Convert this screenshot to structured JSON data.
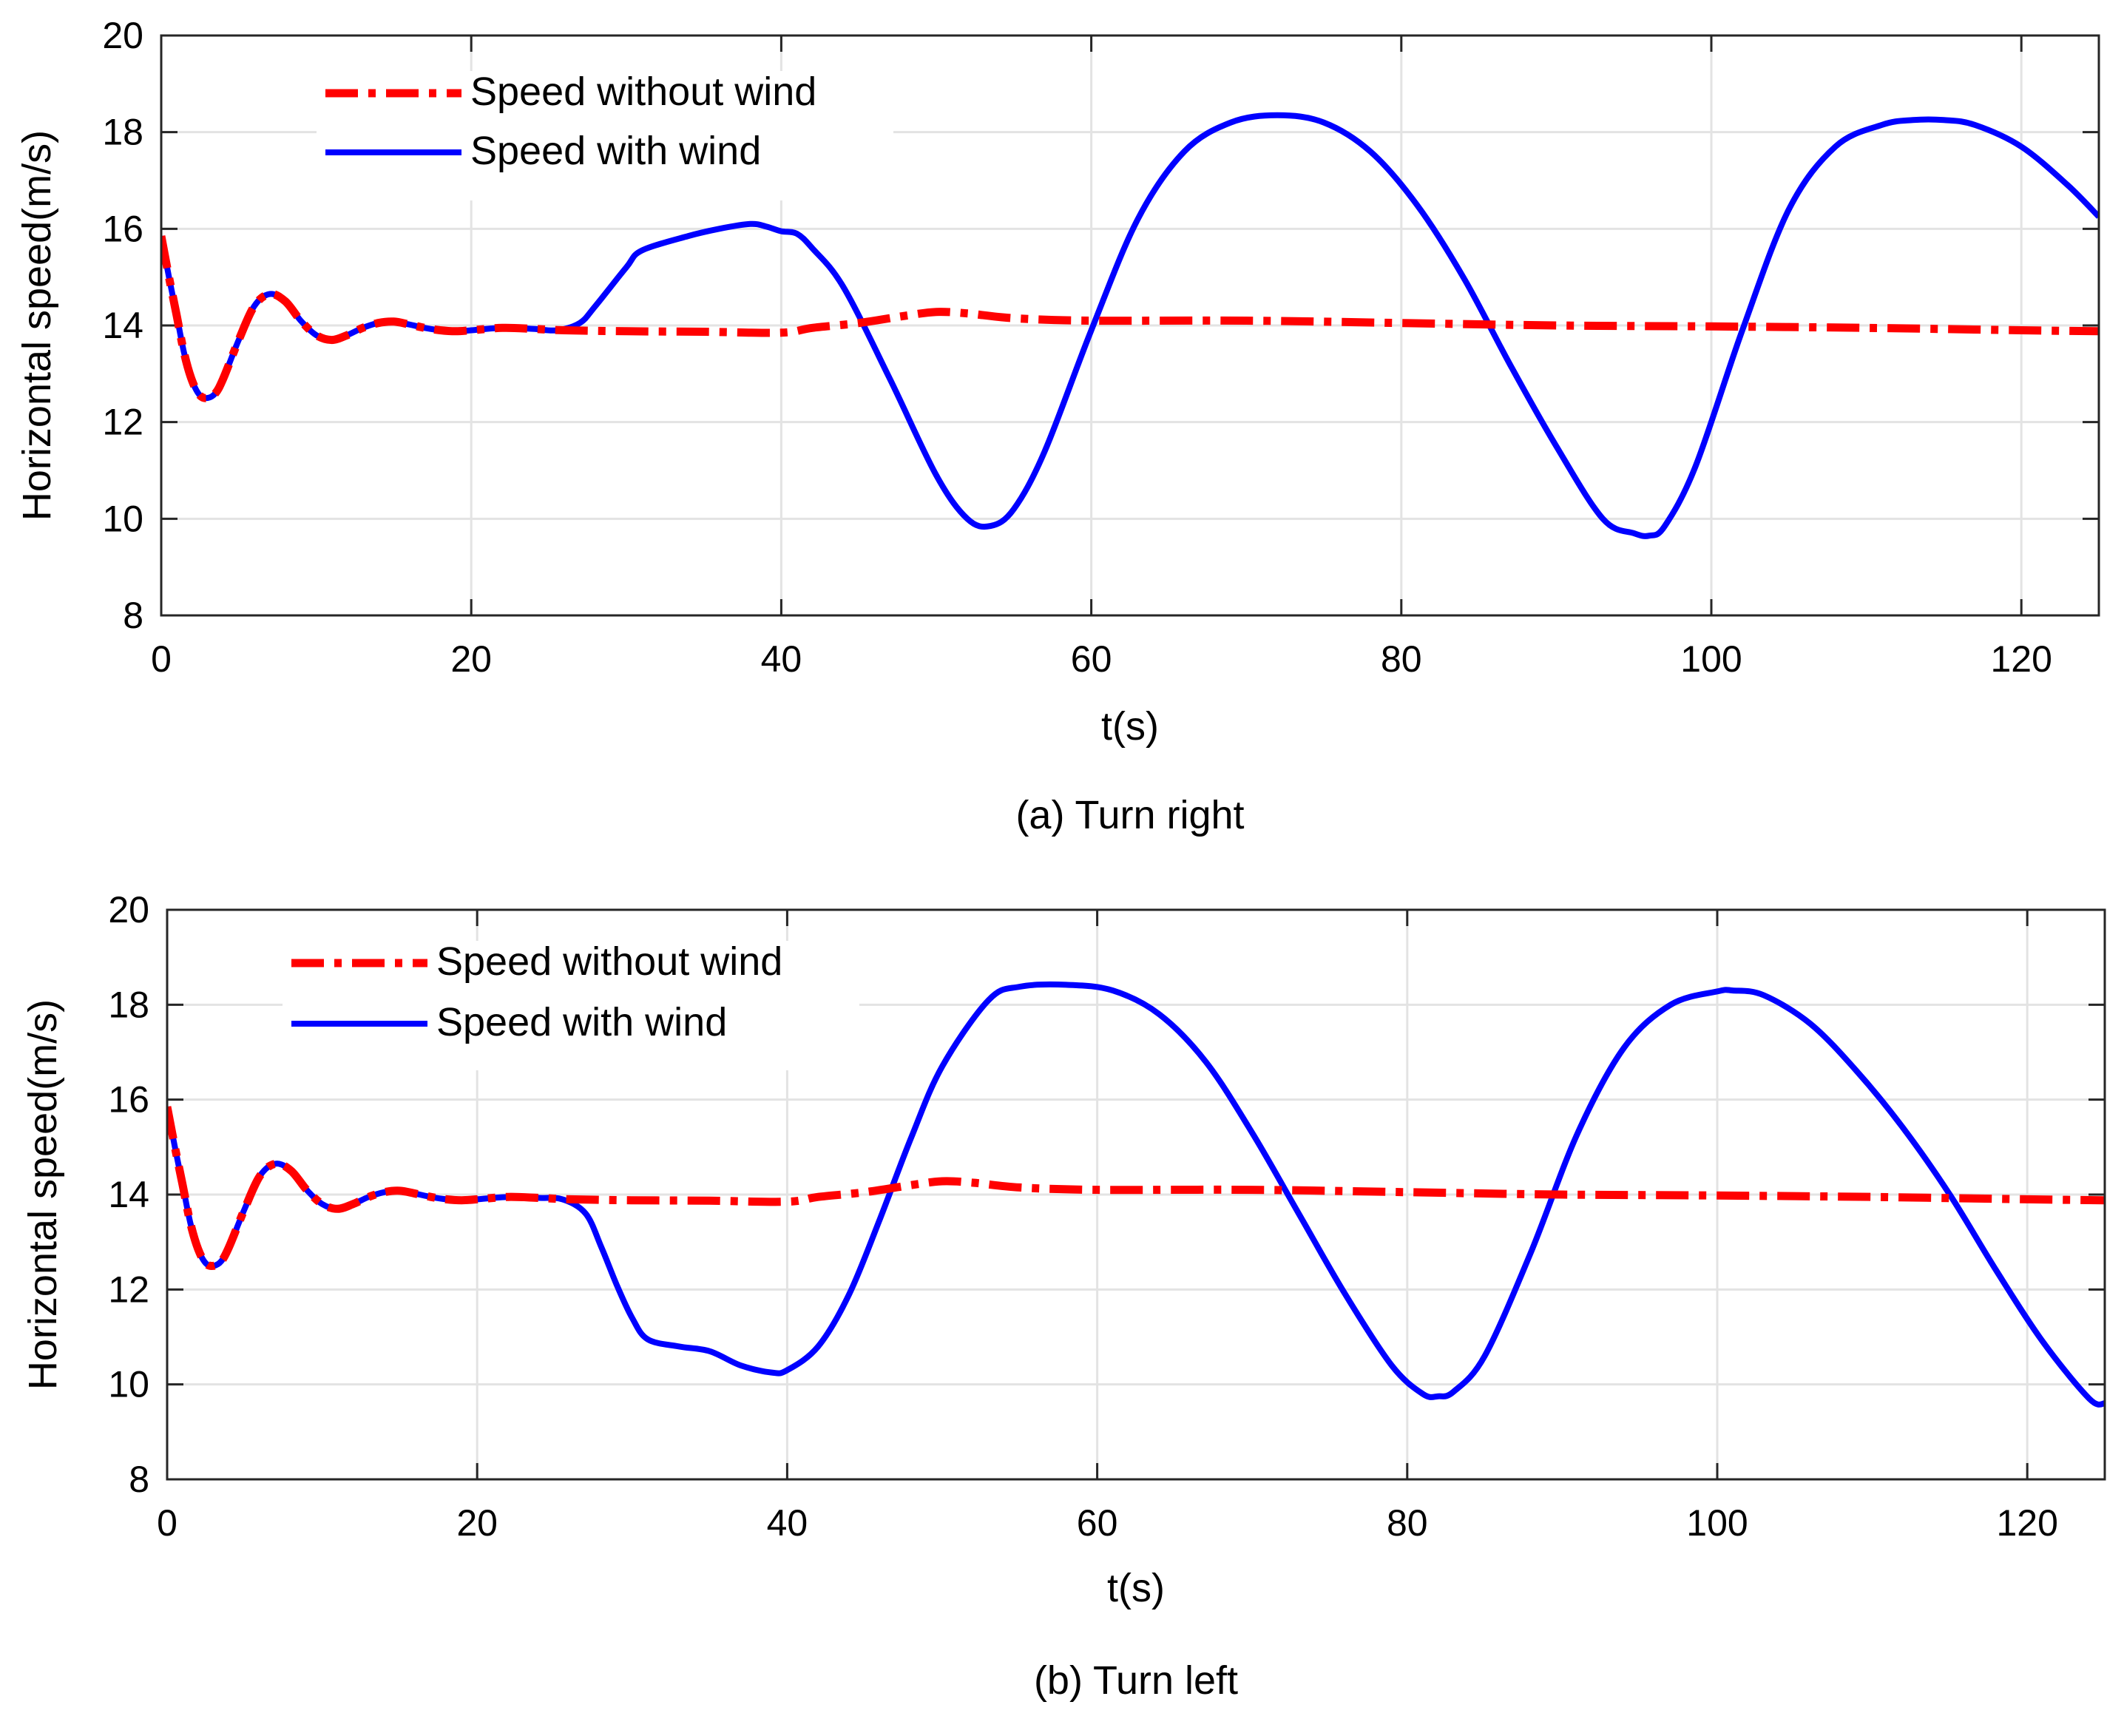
{
  "chart_data": [
    {
      "type": "line",
      "caption": "(a) Turn right",
      "xlabel": "t(s)",
      "ylabel": "Horizontal speed(m/s)",
      "xlim": [
        0,
        125
      ],
      "ylim": [
        8,
        20
      ],
      "xticks": [
        "0",
        "20",
        "40",
        "60",
        "80",
        "100",
        "120"
      ],
      "yticks": [
        "8",
        "10",
        "12",
        "14",
        "16",
        "18",
        "20"
      ],
      "grid": true,
      "legend_position": "top-left",
      "series": [
        {
          "name": "Speed without wind",
          "color": "#ff0000",
          "style": "dash-dot",
          "x": [
            0,
            0.5,
            1,
            1.5,
            2,
            2.5,
            3,
            3.5,
            4,
            5,
            6,
            7,
            8,
            9,
            10,
            11,
            12,
            13,
            14,
            15,
            16,
            17,
            18,
            19,
            20,
            22,
            24,
            26,
            30,
            35,
            40,
            42,
            45,
            48,
            50,
            52,
            55,
            60,
            70,
            80,
            90,
            100,
            110,
            120,
            125
          ],
          "y": [
            15.85,
            15.0,
            14.2,
            13.4,
            12.85,
            12.55,
            12.5,
            12.6,
            12.9,
            13.7,
            14.4,
            14.65,
            14.5,
            14.1,
            13.8,
            13.7,
            13.8,
            13.95,
            14.05,
            14.08,
            14.02,
            13.95,
            13.9,
            13.88,
            13.9,
            13.95,
            13.93,
            13.9,
            13.88,
            13.87,
            13.85,
            13.95,
            14.05,
            14.2,
            14.28,
            14.25,
            14.15,
            14.1,
            14.1,
            14.05,
            14.0,
            13.98,
            13.95,
            13.9,
            13.88
          ]
        },
        {
          "name": "Speed with wind",
          "color": "#0000ff",
          "style": "solid",
          "x": [
            0,
            0.5,
            1,
            1.5,
            2,
            2.5,
            3,
            3.5,
            4,
            5,
            6,
            7,
            8,
            9,
            10,
            11,
            12,
            13,
            14,
            15,
            16,
            17,
            18,
            19,
            20,
            22,
            24,
            25.5,
            27,
            28,
            30,
            31,
            34,
            36,
            38,
            39,
            40,
            41,
            42,
            44,
            47,
            50,
            52,
            53.5,
            55,
            57,
            60,
            63,
            66,
            69,
            72,
            75,
            78,
            81,
            84,
            87,
            90,
            93,
            95,
            96,
            97,
            99,
            102,
            105,
            108,
            111,
            113,
            115,
            117,
            120,
            123,
            125
          ],
          "y": [
            15.85,
            15.0,
            14.2,
            13.4,
            12.85,
            12.55,
            12.5,
            12.6,
            12.9,
            13.7,
            14.4,
            14.65,
            14.5,
            14.1,
            13.8,
            13.7,
            13.8,
            13.95,
            14.05,
            14.08,
            14.02,
            13.95,
            13.9,
            13.88,
            13.9,
            13.95,
            13.93,
            13.9,
            14.05,
            14.4,
            15.2,
            15.55,
            15.85,
            16.0,
            16.1,
            16.05,
            15.95,
            15.9,
            15.6,
            14.8,
            12.9,
            10.9,
            10.0,
            9.85,
            10.2,
            11.4,
            13.9,
            16.2,
            17.6,
            18.2,
            18.35,
            18.2,
            17.6,
            16.5,
            15.0,
            13.2,
            11.5,
            10.0,
            9.7,
            9.65,
            9.85,
            11.1,
            13.9,
            16.4,
            17.7,
            18.15,
            18.25,
            18.25,
            18.15,
            17.7,
            16.9,
            16.25
          ]
        }
      ]
    },
    {
      "type": "line",
      "caption": "(b) Turn left",
      "xlabel": "t(s)",
      "ylabel": "Horizontal speed(m/s)",
      "xlim": [
        0,
        125
      ],
      "ylim": [
        8,
        20
      ],
      "xticks": [
        "0",
        "20",
        "40",
        "60",
        "80",
        "100",
        "120"
      ],
      "yticks": [
        "8",
        "10",
        "12",
        "14",
        "16",
        "18",
        "20"
      ],
      "grid": true,
      "legend_position": "top-left",
      "series": [
        {
          "name": "Speed without wind",
          "color": "#ff0000",
          "style": "dash-dot",
          "x": [
            0,
            0.5,
            1,
            1.5,
            2,
            2.5,
            3,
            3.5,
            4,
            5,
            6,
            7,
            8,
            9,
            10,
            11,
            12,
            13,
            14,
            15,
            16,
            17,
            18,
            19,
            20,
            22,
            24,
            26,
            30,
            35,
            40,
            42,
            45,
            48,
            50,
            52,
            55,
            60,
            70,
            80,
            90,
            100,
            110,
            120,
            125
          ],
          "y": [
            15.85,
            15.0,
            14.2,
            13.4,
            12.85,
            12.55,
            12.5,
            12.6,
            12.9,
            13.7,
            14.4,
            14.65,
            14.5,
            14.1,
            13.8,
            13.7,
            13.8,
            13.95,
            14.05,
            14.08,
            14.02,
            13.95,
            13.9,
            13.88,
            13.9,
            13.95,
            13.93,
            13.9,
            13.88,
            13.87,
            13.85,
            13.95,
            14.05,
            14.2,
            14.28,
            14.25,
            14.15,
            14.1,
            14.1,
            14.05,
            14.0,
            13.98,
            13.95,
            13.9,
            13.88
          ]
        },
        {
          "name": "Speed with wind",
          "color": "#0000ff",
          "style": "solid",
          "x": [
            0,
            0.5,
            1,
            1.5,
            2,
            2.5,
            3,
            3.5,
            4,
            5,
            6,
            7,
            8,
            9,
            10,
            11,
            12,
            13,
            14,
            15,
            16,
            17,
            18,
            19,
            20,
            22,
            24,
            25.5,
            27,
            28,
            29,
            30,
            31,
            33,
            35,
            37,
            39,
            40,
            42,
            44,
            46,
            48,
            50,
            53,
            55,
            58,
            61,
            64,
            67,
            70,
            73,
            76,
            79,
            81,
            82,
            83,
            85,
            88,
            91,
            94,
            97,
            100,
            101,
            103,
            106,
            109,
            112,
            115,
            118,
            121,
            124,
            125
          ],
          "y": [
            15.85,
            15.0,
            14.2,
            13.4,
            12.85,
            12.55,
            12.5,
            12.6,
            12.9,
            13.7,
            14.4,
            14.65,
            14.5,
            14.1,
            13.8,
            13.7,
            13.8,
            13.95,
            14.05,
            14.08,
            14.02,
            13.95,
            13.9,
            13.88,
            13.9,
            13.95,
            13.93,
            13.9,
            13.6,
            12.9,
            12.1,
            11.4,
            10.95,
            10.8,
            10.7,
            10.4,
            10.25,
            10.3,
            10.8,
            11.9,
            13.5,
            15.2,
            16.7,
            18.1,
            18.38,
            18.42,
            18.3,
            17.8,
            16.8,
            15.3,
            13.6,
            11.9,
            10.4,
            9.8,
            9.75,
            9.85,
            10.6,
            12.8,
            15.3,
            17.1,
            18.0,
            18.28,
            18.3,
            18.2,
            17.6,
            16.6,
            15.4,
            14.0,
            12.4,
            10.9,
            9.7,
            9.6
          ]
        }
      ]
    }
  ]
}
